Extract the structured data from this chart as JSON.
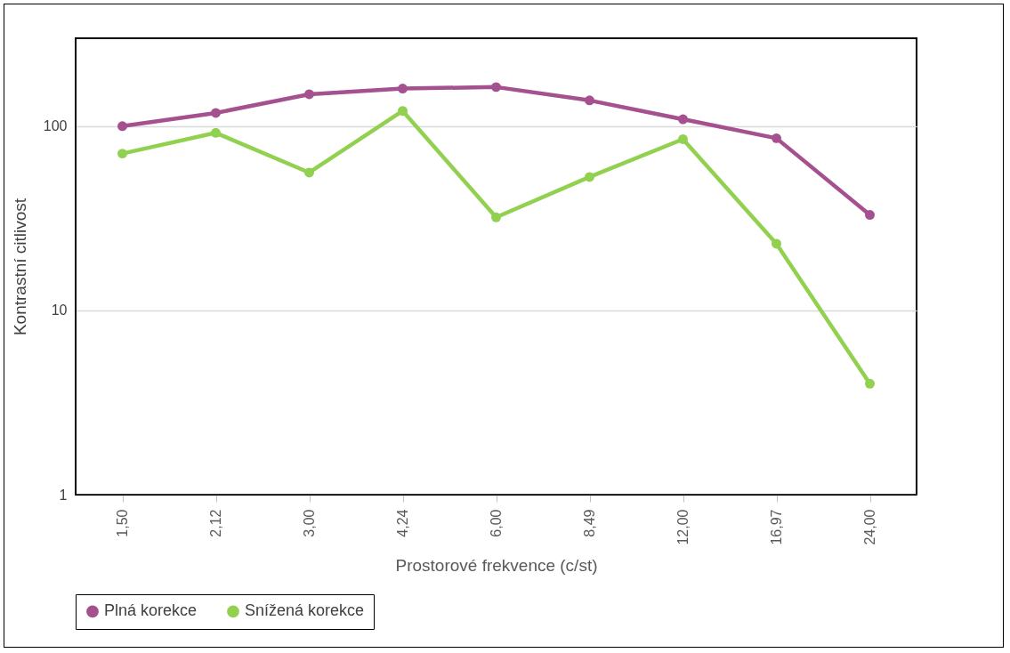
{
  "chart_data": {
    "type": "line",
    "xlabel": "Prostorové frekvence (c/st)",
    "ylabel": "Kontrastní citlivost",
    "categories": [
      "1,50",
      "2,12",
      "3,00",
      "4,24",
      "6,00",
      "8,49",
      "12,00",
      "16,97",
      "24,00"
    ],
    "series": [
      {
        "name": "Plná korekce",
        "color": "#a5508f",
        "values": [
          100,
          118,
          149,
          160,
          163,
          138,
          109,
          86,
          33
        ]
      },
      {
        "name": "Snížená korekce",
        "color": "#92d050",
        "values": [
          71,
          92,
          56,
          121,
          32,
          53,
          85,
          23,
          4
        ]
      }
    ],
    "log": true,
    "ylim": [
      1,
      300
    ],
    "yticks": [
      1,
      10,
      100
    ],
    "grid": "y",
    "legend": "bottom",
    "marker": "circle",
    "line_style": "solid"
  }
}
